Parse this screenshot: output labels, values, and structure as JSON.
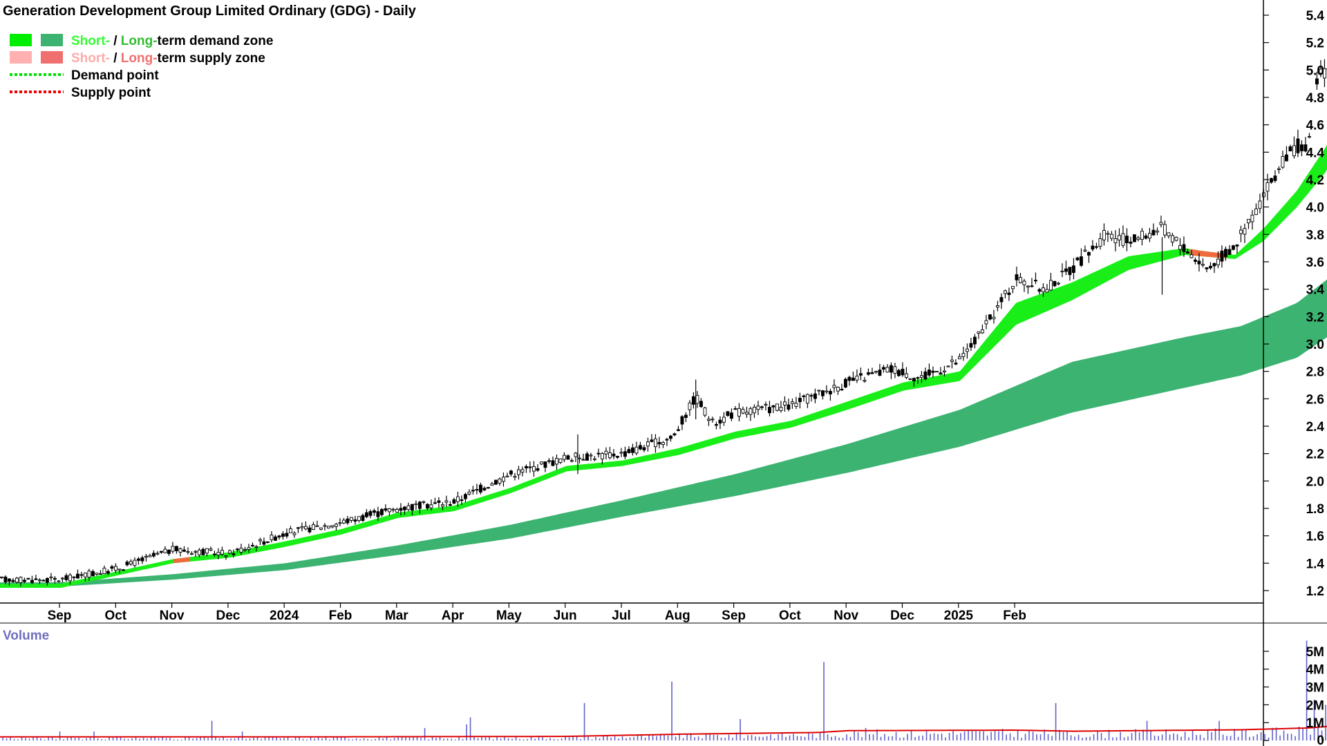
{
  "chart_data": [
    {
      "type": "candlestick",
      "title": "Generation Development Group Limited Ordinary (GDG) - Daily",
      "x_tick_labels": [
        "Sep",
        "Oct",
        "Nov",
        "Dec",
        "2024",
        "Feb",
        "Mar",
        "Apr",
        "May",
        "Jun",
        "Jul",
        "Aug",
        "Sep",
        "Oct",
        "Nov",
        "Dec",
        "2025",
        "Feb"
      ],
      "y_tick_labels": [
        "5.4",
        "5.2",
        "5.0",
        "4.8",
        "4.6",
        "4.4",
        "4.2",
        "4.0",
        "3.8",
        "3.6",
        "3.4",
        "3.2",
        "3.0",
        "2.8",
        "2.6",
        "2.4",
        "2.2",
        "2.0",
        "1.8",
        "1.6",
        "1.4",
        "1.2"
      ],
      "ylim": [
        1.1,
        5.5
      ],
      "legend": {
        "placement": "top-left",
        "entries": [
          {
            "parts": [
              "Short-",
              " / ",
              "Long-",
              "term demand zone"
            ],
            "colors": [
              "#33ff33",
              "#000000",
              "#33bb33",
              "#000000"
            ],
            "swatches": [
              "#00ee00",
              "#3cb371"
            ]
          },
          {
            "parts": [
              "Short-",
              " / ",
              "Long-",
              "term supply zone"
            ],
            "colors": [
              "#ffaaaa",
              "#000000",
              "#f07070",
              "#000000"
            ],
            "swatches": [
              "#ffb0b0",
              "#f07070"
            ]
          },
          {
            "parts": [
              "Demand point"
            ],
            "colors": [
              "#000000"
            ],
            "line_color": "#00dd00"
          },
          {
            "parts": [
              "Supply point"
            ],
            "colors": [
              "#000000"
            ],
            "line_color": "#ee0000"
          }
        ]
      },
      "price_anchors": [
        {
          "month": 0.0,
          "price": 1.28
        },
        {
          "month": 1.0,
          "price": 1.36
        },
        {
          "month": 2.0,
          "price": 1.5
        },
        {
          "month": 3.0,
          "price": 1.47
        },
        {
          "month": 4.0,
          "price": 1.62
        },
        {
          "month": 5.0,
          "price": 1.7
        },
        {
          "month": 6.0,
          "price": 1.8
        },
        {
          "month": 7.0,
          "price": 1.85
        },
        {
          "month": 8.0,
          "price": 2.05
        },
        {
          "month": 9.0,
          "price": 2.17
        },
        {
          "month": 10.0,
          "price": 2.2
        },
        {
          "month": 10.9,
          "price": 2.32
        },
        {
          "month": 11.3,
          "price": 2.62
        },
        {
          "month": 11.6,
          "price": 2.42
        },
        {
          "month": 12.0,
          "price": 2.5
        },
        {
          "month": 13.0,
          "price": 2.55
        },
        {
          "month": 14.0,
          "price": 2.72
        },
        {
          "month": 14.8,
          "price": 2.82
        },
        {
          "month": 15.3,
          "price": 2.75
        },
        {
          "month": 16.0,
          "price": 2.88
        },
        {
          "month": 16.5,
          "price": 3.15
        },
        {
          "month": 17.0,
          "price": 3.48
        },
        {
          "month": 17.5,
          "price": 3.4
        },
        {
          "month": 18.0,
          "price": 3.55
        },
        {
          "month": 18.6,
          "price": 3.8
        },
        {
          "month": 19.0,
          "price": 3.75
        },
        {
          "month": 19.6,
          "price": 3.85
        },
        {
          "month": 20.0,
          "price": 3.7
        },
        {
          "month": 20.4,
          "price": 3.55
        },
        {
          "month": 20.9,
          "price": 3.72
        },
        {
          "month": 21.3,
          "price": 4.0
        },
        {
          "month": 21.7,
          "price": 4.3
        },
        {
          "month": 22.0,
          "price": 4.45
        },
        {
          "month": 22.2,
          "price": 4.4
        },
        {
          "month": 22.35,
          "price": 4.95
        },
        {
          "month": 22.7,
          "price": 5.05
        },
        {
          "month": 23.0,
          "price": 5.15
        }
      ],
      "short_term_zone": [
        {
          "month": 0.0,
          "upper": 1.25,
          "lower": 1.22
        },
        {
          "month": 2.0,
          "upper": 1.43,
          "lower": 1.4
        },
        {
          "month": 3.0,
          "upper": 1.48,
          "lower": 1.44
        },
        {
          "month": 4.0,
          "upper": 1.56,
          "lower": 1.52
        },
        {
          "month": 5.0,
          "upper": 1.65,
          "lower": 1.61
        },
        {
          "month": 6.0,
          "upper": 1.77,
          "lower": 1.73
        },
        {
          "month": 7.0,
          "upper": 1.82,
          "lower": 1.78
        },
        {
          "month": 8.0,
          "upper": 1.95,
          "lower": 1.91
        },
        {
          "month": 9.0,
          "upper": 2.11,
          "lower": 2.07
        },
        {
          "month": 10.0,
          "upper": 2.15,
          "lower": 2.11
        },
        {
          "month": 11.0,
          "upper": 2.24,
          "lower": 2.19
        },
        {
          "month": 12.0,
          "upper": 2.36,
          "lower": 2.31
        },
        {
          "month": 13.0,
          "upper": 2.44,
          "lower": 2.39
        },
        {
          "month": 14.0,
          "upper": 2.58,
          "lower": 2.52
        },
        {
          "month": 15.0,
          "upper": 2.72,
          "lower": 2.66
        },
        {
          "month": 16.0,
          "upper": 2.8,
          "lower": 2.73
        },
        {
          "month": 17.0,
          "upper": 3.3,
          "lower": 3.14
        },
        {
          "month": 18.0,
          "upper": 3.45,
          "lower": 3.32
        },
        {
          "month": 19.0,
          "upper": 3.64,
          "lower": 3.54
        },
        {
          "month": 20.0,
          "upper": 3.7,
          "lower": 3.65
        },
        {
          "month": 20.3,
          "upper": 3.68,
          "lower": 3.64
        },
        {
          "month": 20.9,
          "upper": 3.65,
          "lower": 3.62
        },
        {
          "month": 21.4,
          "upper": 3.84,
          "lower": 3.75
        },
        {
          "month": 22.0,
          "upper": 4.12,
          "lower": 4.0
        },
        {
          "month": 22.5,
          "upper": 4.43,
          "lower": 4.25
        },
        {
          "month": 23.0,
          "upper": 4.78,
          "lower": 4.58
        }
      ],
      "supply_segments": [
        {
          "from_month": 2.0,
          "to_month": 2.3
        },
        {
          "from_month": 20.1,
          "to_month": 20.75
        }
      ],
      "long_term_zone": [
        {
          "month": 0.0,
          "upper": 1.26,
          "lower": 1.23
        },
        {
          "month": 2.0,
          "upper": 1.32,
          "lower": 1.28
        },
        {
          "month": 4.0,
          "upper": 1.4,
          "lower": 1.35
        },
        {
          "month": 6.0,
          "upper": 1.53,
          "lower": 1.46
        },
        {
          "month": 8.0,
          "upper": 1.68,
          "lower": 1.58
        },
        {
          "month": 10.0,
          "upper": 1.86,
          "lower": 1.74
        },
        {
          "month": 12.0,
          "upper": 2.05,
          "lower": 1.89
        },
        {
          "month": 14.0,
          "upper": 2.27,
          "lower": 2.06
        },
        {
          "month": 16.0,
          "upper": 2.52,
          "lower": 2.25
        },
        {
          "month": 18.0,
          "upper": 2.87,
          "lower": 2.5
        },
        {
          "month": 20.0,
          "upper": 3.05,
          "lower": 2.68
        },
        {
          "month": 21.0,
          "upper": 3.13,
          "lower": 2.77
        },
        {
          "month": 22.0,
          "upper": 3.3,
          "lower": 2.9
        },
        {
          "month": 23.0,
          "upper": 3.62,
          "lower": 3.18
        }
      ],
      "colors": {
        "short_zone": "#19ee19",
        "long_zone": "#3cb371",
        "supply_zone": "#f06a40",
        "candle_up": "#ffffff",
        "candle_down": "#000000",
        "wick": "#000000",
        "axis": "#000000"
      }
    },
    {
      "type": "bar",
      "title": "Volume",
      "y_tick_labels": [
        "5M",
        "4M",
        "3M",
        "2M",
        "1M",
        "0"
      ],
      "ylim": [
        0,
        5500000
      ],
      "average_line_color": "#dd0000",
      "bar_color": "#6060cc",
      "volume_spikes": [
        {
          "month": 0.0,
          "value": 500000
        },
        {
          "month": 0.6,
          "value": 500000
        },
        {
          "month": 2.7,
          "value": 1100000
        },
        {
          "month": 3.2,
          "value": 500000
        },
        {
          "month": 6.5,
          "value": 700000
        },
        {
          "month": 7.2,
          "value": 900000
        },
        {
          "month": 7.3,
          "value": 1300000
        },
        {
          "month": 9.3,
          "value": 2100000
        },
        {
          "month": 10.9,
          "value": 3300000
        },
        {
          "month": 12.1,
          "value": 1200000
        },
        {
          "month": 13.6,
          "value": 4400000
        },
        {
          "month": 14.3,
          "value": 700000
        },
        {
          "month": 17.7,
          "value": 2100000
        },
        {
          "month": 19.3,
          "value": 1100000
        },
        {
          "month": 20.6,
          "value": 1100000
        },
        {
          "month": 22.2,
          "value": 5600000
        },
        {
          "month": 22.3,
          "value": 2300000
        },
        {
          "month": 22.5,
          "value": 2000000
        },
        {
          "month": 22.8,
          "value": 1700000
        },
        {
          "month": 23.0,
          "value": 1800000
        }
      ],
      "average_volume": [
        {
          "month": 0.0,
          "value": 200000
        },
        {
          "month": 4.0,
          "value": 200000
        },
        {
          "month": 9.0,
          "value": 230000
        },
        {
          "month": 11.0,
          "value": 350000
        },
        {
          "month": 13.5,
          "value": 450000
        },
        {
          "month": 14.0,
          "value": 550000
        },
        {
          "month": 17.0,
          "value": 580000
        },
        {
          "month": 18.0,
          "value": 520000
        },
        {
          "month": 21.0,
          "value": 600000
        },
        {
          "month": 22.2,
          "value": 700000
        },
        {
          "month": 23.0,
          "value": 900000
        }
      ]
    }
  ]
}
